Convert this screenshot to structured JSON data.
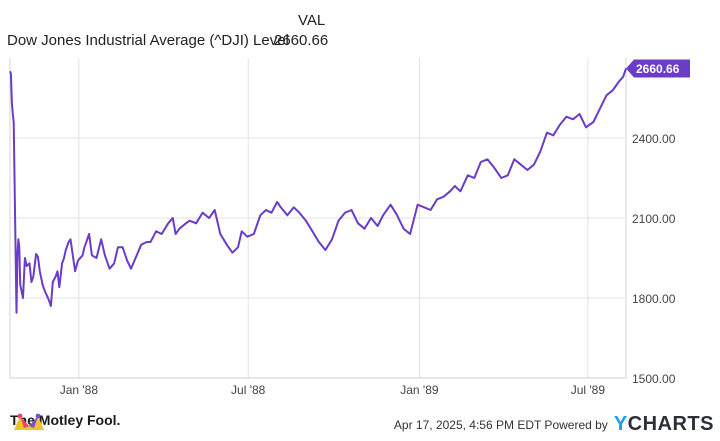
{
  "header": {
    "val_label": "VAL",
    "series_name": "Dow Jones Industrial Average (^DJI) Level",
    "last_value": "2660.66"
  },
  "chart_data": {
    "type": "line",
    "title": "",
    "xlabel": "",
    "ylabel": "",
    "x_ticks": [
      "Jan '88",
      "Jul '88",
      "Jan '89",
      "Jul '89"
    ],
    "y_ticks": [
      "1500.00",
      "1800.00",
      "2100.00",
      "2400.00"
    ],
    "ylim": [
      1500,
      2700
    ],
    "grid": true,
    "line_color": "#6a3cc8",
    "end_label": "2660.66",
    "series": [
      {
        "x": [
          "1987-10-19",
          "1987-10-20",
          "1987-10-21",
          "1987-10-22",
          "1987-10-23",
          "1987-10-26",
          "1987-10-27",
          "1987-10-28",
          "1987-10-29",
          "1987-10-30",
          "1987-11-02",
          "1987-11-04",
          "1987-11-06",
          "1987-11-09",
          "1987-11-11",
          "1987-11-13",
          "1987-11-16",
          "1987-11-18",
          "1987-11-20",
          "1987-11-23",
          "1987-11-25",
          "1987-11-30",
          "1987-12-02",
          "1987-12-04",
          "1987-12-07",
          "1987-12-09",
          "1987-12-11",
          "1987-12-14",
          "1987-12-16",
          "1987-12-18",
          "1987-12-21",
          "1987-12-23",
          "1987-12-28",
          "1987-12-31",
          "1988-01-05",
          "1988-01-07",
          "1988-01-08",
          "1988-01-12",
          "1988-01-15",
          "1988-01-20",
          "1988-01-25",
          "1988-01-29",
          "1988-02-03",
          "1988-02-08",
          "1988-02-12",
          "1988-02-17",
          "1988-02-22",
          "1988-02-26",
          "1988-03-02",
          "1988-03-08",
          "1988-03-14",
          "1988-03-18",
          "1988-03-24",
          "1988-03-30",
          "1988-04-06",
          "1988-04-11",
          "1988-04-14",
          "1988-04-18",
          "1988-04-25",
          "1988-04-29",
          "1988-05-06",
          "1988-05-13",
          "1988-05-20",
          "1988-05-26",
          "1988-06-01",
          "1988-06-08",
          "1988-06-14",
          "1988-06-20",
          "1988-06-24",
          "1988-06-30",
          "1988-07-07",
          "1988-07-14",
          "1988-07-20",
          "1988-07-26",
          "1988-08-01",
          "1988-08-05",
          "1988-08-12",
          "1988-08-19",
          "1988-08-25",
          "1988-09-01",
          "1988-09-08",
          "1988-09-15",
          "1988-09-22",
          "1988-09-29",
          "1988-10-06",
          "1988-10-13",
          "1988-10-20",
          "1988-10-27",
          "1988-11-03",
          "1988-11-10",
          "1988-11-17",
          "1988-11-23",
          "1988-12-01",
          "1988-12-08",
          "1988-12-15",
          "1988-12-22",
          "1988-12-30",
          "1989-01-06",
          "1989-01-13",
          "1989-01-20",
          "1989-01-27",
          "1989-02-03",
          "1989-02-08",
          "1989-02-14",
          "1989-02-22",
          "1989-03-01",
          "1989-03-08",
          "1989-03-15",
          "1989-03-22",
          "1989-03-30",
          "1989-04-06",
          "1989-04-13",
          "1989-04-20",
          "1989-04-27",
          "1989-05-04",
          "1989-05-11",
          "1989-05-18",
          "1989-05-25",
          "1989-06-01",
          "1989-06-08",
          "1989-06-15",
          "1989-06-22",
          "1989-06-29",
          "1989-07-07",
          "1989-07-14",
          "1989-07-21",
          "1989-07-28",
          "1989-08-03",
          "1989-08-08",
          "1989-08-11"
        ],
        "values": [
          2650,
          2640,
          2530,
          2490,
          2460,
          1745,
          1960,
          2020,
          1990,
          1850,
          1800,
          1950,
          1920,
          1930,
          1860,
          1880,
          1965,
          1955,
          1900,
          1850,
          1830,
          1790,
          1770,
          1860,
          1880,
          1900,
          1840,
          1930,
          1950,
          1980,
          2010,
          2020,
          1900,
          1940,
          1960,
          1990,
          2000,
          2040,
          1960,
          1950,
          2020,
          1960,
          1910,
          1930,
          1990,
          1990,
          1940,
          1910,
          1950,
          2000,
          2010,
          2010,
          2050,
          2040,
          2080,
          2100,
          2040,
          2060,
          2080,
          2090,
          2080,
          2120,
          2100,
          2130,
          2040,
          2000,
          1970,
          1990,
          2050,
          2030,
          2040,
          2110,
          2130,
          2120,
          2160,
          2140,
          2110,
          2140,
          2120,
          2090,
          2050,
          2010,
          1980,
          2020,
          2090,
          2120,
          2130,
          2080,
          2060,
          2100,
          2070,
          2110,
          2150,
          2110,
          2060,
          2040,
          2150,
          2140,
          2130,
          2170,
          2180,
          2200,
          2220,
          2200,
          2260,
          2250,
          2310,
          2320,
          2290,
          2250,
          2260,
          2320,
          2300,
          2280,
          2300,
          2350,
          2420,
          2410,
          2450,
          2480,
          2470,
          2490,
          2440,
          2460,
          2510,
          2560,
          2580,
          2610,
          2630,
          2660.66
        ]
      }
    ]
  },
  "footer": {
    "brand": "The Motley Fool.",
    "credit": "Apr 17, 2025, 4:56 PM EDT Powered by",
    "ycharts": "CHARTS",
    "ycharts_y": "Y"
  }
}
